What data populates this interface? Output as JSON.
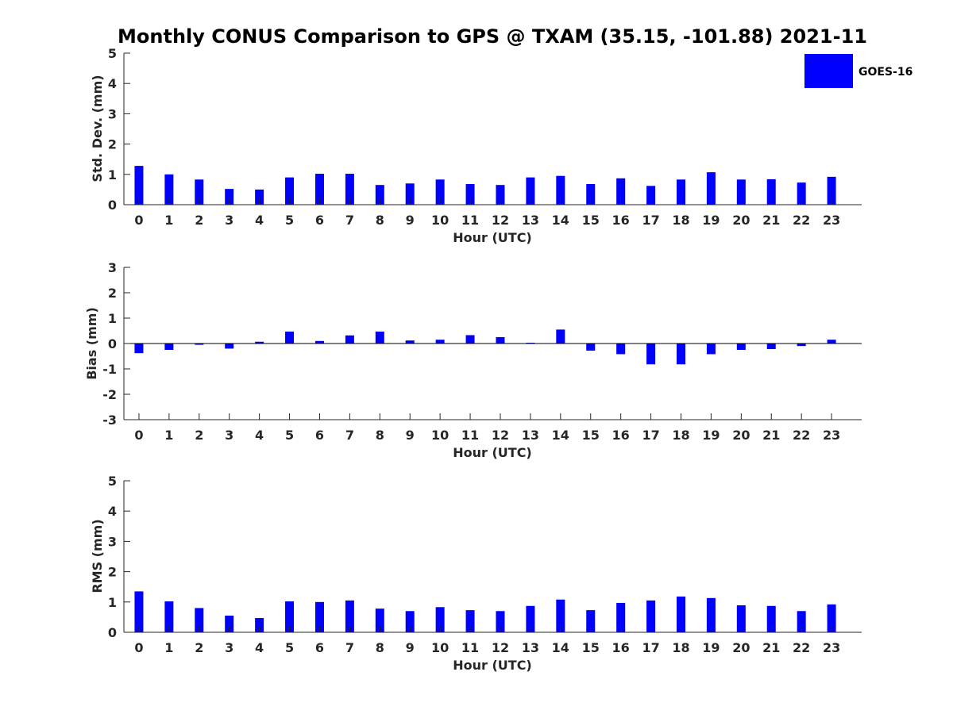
{
  "chart_data": {
    "title": "Monthly CONUS Comparison to GPS @ TXAM (35.15, -101.88) 2021-11",
    "type": "bar",
    "bar_color": "#0000ff",
    "legend": {
      "label": "GOES-16",
      "placement": "top-right"
    },
    "categories": [
      "0",
      "1",
      "2",
      "3",
      "4",
      "5",
      "6",
      "7",
      "8",
      "9",
      "10",
      "11",
      "12",
      "13",
      "14",
      "15",
      "16",
      "17",
      "18",
      "19",
      "20",
      "21",
      "22",
      "23"
    ],
    "panels": [
      {
        "id": "stddev",
        "ylabel": "Std. Dev. (mm)",
        "xlabel": "Hour (UTC)",
        "ylim": [
          0,
          5
        ],
        "yticks": [
          0,
          1,
          2,
          3,
          4,
          5
        ],
        "zero_line": false,
        "values": [
          1.28,
          1.0,
          0.83,
          0.52,
          0.5,
          0.9,
          1.02,
          1.02,
          0.65,
          0.7,
          0.83,
          0.68,
          0.65,
          0.9,
          0.95,
          0.68,
          0.87,
          0.62,
          0.83,
          1.07,
          0.83,
          0.84,
          0.73,
          0.92
        ]
      },
      {
        "id": "bias",
        "ylabel": "Bias (mm)",
        "xlabel": "Hour (UTC)",
        "ylim": [
          -3,
          3
        ],
        "yticks": [
          -3,
          -2,
          -1,
          0,
          1,
          2,
          3
        ],
        "zero_line": true,
        "values": [
          -0.38,
          -0.25,
          -0.05,
          -0.2,
          0.07,
          0.47,
          0.1,
          0.32,
          0.47,
          0.12,
          0.15,
          0.33,
          0.25,
          0.03,
          0.55,
          -0.28,
          -0.42,
          -0.82,
          -0.82,
          -0.42,
          -0.25,
          -0.22,
          -0.1,
          0.15
        ]
      },
      {
        "id": "rms",
        "ylabel": "RMS (mm)",
        "xlabel": "Hour (UTC)",
        "ylim": [
          0,
          5
        ],
        "yticks": [
          0,
          1,
          2,
          3,
          4,
          5
        ],
        "zero_line": false,
        "values": [
          1.35,
          1.02,
          0.8,
          0.55,
          0.47,
          1.02,
          1.0,
          1.05,
          0.78,
          0.7,
          0.83,
          0.73,
          0.7,
          0.87,
          1.08,
          0.73,
          0.97,
          1.05,
          1.18,
          1.13,
          0.89,
          0.87,
          0.7,
          0.92
        ]
      }
    ]
  }
}
